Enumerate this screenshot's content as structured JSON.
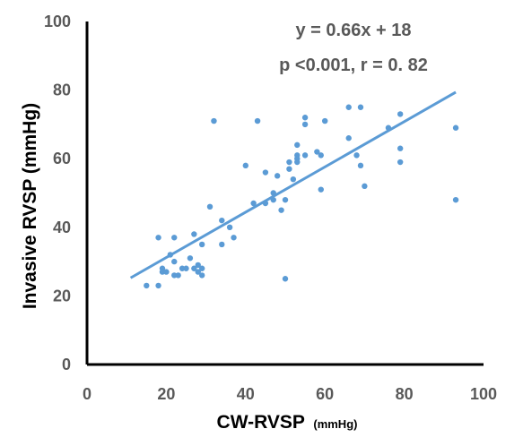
{
  "chart_data": {
    "type": "scatter",
    "xlabel": "CW-RVSP",
    "xlabel_unit": "(mmHg)",
    "ylabel": "Invasive RVSP (mmHg)",
    "xlim": [
      0,
      100
    ],
    "ylim": [
      0,
      100
    ],
    "xticks": [
      0,
      20,
      40,
      60,
      80,
      100
    ],
    "yticks": [
      0,
      20,
      40,
      60,
      80,
      100
    ],
    "grid": false,
    "annotations": [
      "y = 0.66x + 18",
      "p <0.001, r = 0. 82"
    ],
    "trendline": {
      "slope": 0.66,
      "intercept": 18,
      "x_range": [
        11,
        93
      ]
    },
    "colors": {
      "points": "#5b9bd5",
      "trendline": "#5b9bd5",
      "axis": "#000000"
    },
    "points": [
      {
        "x": 15,
        "y": 23
      },
      {
        "x": 18,
        "y": 23
      },
      {
        "x": 18,
        "y": 37
      },
      {
        "x": 19,
        "y": 28
      },
      {
        "x": 19,
        "y": 27
      },
      {
        "x": 20,
        "y": 27
      },
      {
        "x": 21,
        "y": 32
      },
      {
        "x": 22,
        "y": 37
      },
      {
        "x": 22,
        "y": 30
      },
      {
        "x": 22,
        "y": 26
      },
      {
        "x": 23,
        "y": 26
      },
      {
        "x": 24,
        "y": 28
      },
      {
        "x": 25,
        "y": 28
      },
      {
        "x": 26,
        "y": 31
      },
      {
        "x": 27,
        "y": 38
      },
      {
        "x": 27,
        "y": 28
      },
      {
        "x": 28,
        "y": 29
      },
      {
        "x": 28,
        "y": 27
      },
      {
        "x": 29,
        "y": 28
      },
      {
        "x": 29,
        "y": 26
      },
      {
        "x": 29,
        "y": 35
      },
      {
        "x": 31,
        "y": 46
      },
      {
        "x": 32,
        "y": 71
      },
      {
        "x": 34,
        "y": 42
      },
      {
        "x": 34,
        "y": 35
      },
      {
        "x": 36,
        "y": 40
      },
      {
        "x": 37,
        "y": 37
      },
      {
        "x": 40,
        "y": 58
      },
      {
        "x": 42,
        "y": 47
      },
      {
        "x": 43,
        "y": 71
      },
      {
        "x": 45,
        "y": 56
      },
      {
        "x": 45,
        "y": 47
      },
      {
        "x": 47,
        "y": 50
      },
      {
        "x": 47,
        "y": 48
      },
      {
        "x": 48,
        "y": 55
      },
      {
        "x": 49,
        "y": 45
      },
      {
        "x": 50,
        "y": 48
      },
      {
        "x": 50,
        "y": 25
      },
      {
        "x": 51,
        "y": 57
      },
      {
        "x": 51,
        "y": 59
      },
      {
        "x": 52,
        "y": 54
      },
      {
        "x": 53,
        "y": 64
      },
      {
        "x": 53,
        "y": 61
      },
      {
        "x": 53,
        "y": 60
      },
      {
        "x": 53,
        "y": 59
      },
      {
        "x": 55,
        "y": 72
      },
      {
        "x": 55,
        "y": 70
      },
      {
        "x": 55,
        "y": 61
      },
      {
        "x": 58,
        "y": 62
      },
      {
        "x": 59,
        "y": 61
      },
      {
        "x": 59,
        "y": 51
      },
      {
        "x": 60,
        "y": 71
      },
      {
        "x": 66,
        "y": 75
      },
      {
        "x": 66,
        "y": 66
      },
      {
        "x": 68,
        "y": 61
      },
      {
        "x": 69,
        "y": 75
      },
      {
        "x": 69,
        "y": 58
      },
      {
        "x": 70,
        "y": 52
      },
      {
        "x": 76,
        "y": 69
      },
      {
        "x": 79,
        "y": 73
      },
      {
        "x": 79,
        "y": 63
      },
      {
        "x": 79,
        "y": 59
      },
      {
        "x": 93,
        "y": 69
      },
      {
        "x": 93,
        "y": 48
      }
    ]
  }
}
